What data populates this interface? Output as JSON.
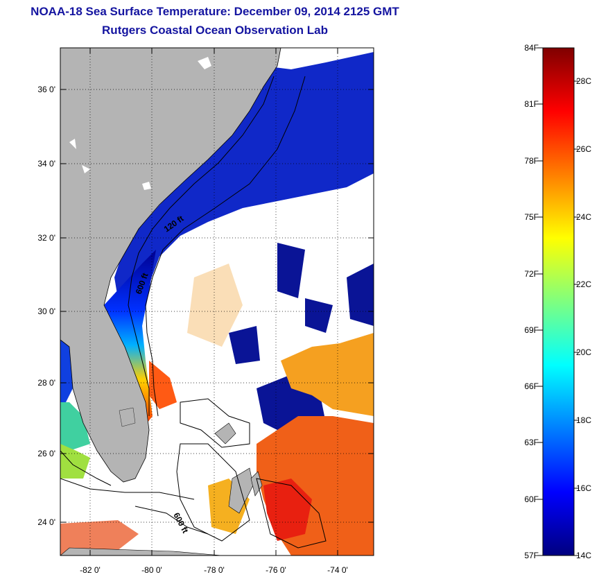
{
  "header": {
    "title": "NOAA-18 Sea Surface Temperature:  December 09, 2014 2125 GMT",
    "subtitle": "Rutgers Coastal Ocean Observation Lab"
  },
  "map": {
    "lat_ticks": [
      "36 0'",
      "34 0'",
      "32 0'",
      "30 0'",
      "28 0'",
      "26 0'",
      "24 0'"
    ],
    "lon_ticks": [
      "-82 0'",
      "-80 0'",
      "-78 0'",
      "-76 0'",
      "-74 0'"
    ],
    "contour_labels": [
      "120 ft",
      "600 ft",
      "600 ft"
    ],
    "land_color": "#b4b4b4",
    "cloud_color": "#ffffff"
  },
  "colorbar": {
    "fahrenheit_labels": [
      "84F",
      "81F",
      "78F",
      "75F",
      "72F",
      "69F",
      "66F",
      "63F",
      "60F",
      "57F"
    ],
    "celsius_labels": [
      "28C",
      "26C",
      "24C",
      "22C",
      "20C",
      "18C",
      "16C",
      "14C"
    ],
    "colors": [
      "#00007f",
      "#0000ff",
      "#007fff",
      "#00ffff",
      "#7fff7f",
      "#ffff00",
      "#ff7f00",
      "#ff0000",
      "#7f0000"
    ]
  }
}
